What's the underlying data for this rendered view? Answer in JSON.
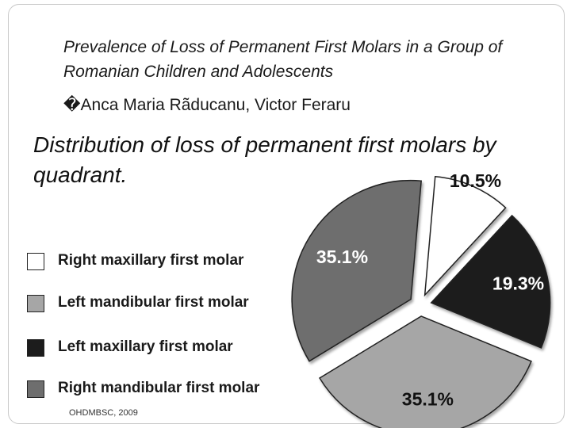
{
  "slide": {
    "title": "Prevalence of Loss of Permanent First Molars in a Group of Romanian Children and Adolescents",
    "authors": "�Anca Maria Rãducanu, Victor Feraru",
    "footer": "OHDMBSC, 2009"
  },
  "chart_data": {
    "type": "pie",
    "title": "Distribution of loss of permanent first molars by quadrant.",
    "legend_position": "left",
    "categories": [
      "Right maxillary first molar",
      "Left mandibular first molar",
      "Left maxillary first molar",
      "Right mandibular first molar"
    ],
    "values": [
      10.5,
      35.1,
      19.3,
      35.1
    ],
    "slices": [
      {
        "label": "Right maxillary first molar",
        "value": 10.5,
        "text": "10.5%",
        "color": "#ffffff"
      },
      {
        "label": "Left maxillary first molar",
        "value": 19.3,
        "text": "19.3%",
        "color": "#1c1c1c"
      },
      {
        "label": "Left mandibular first molar",
        "value": 35.1,
        "text": "35.1%",
        "color": "#a6a6a6"
      },
      {
        "label": "Right mandibular first molar",
        "value": 35.1,
        "text": "35.1%",
        "color": "#6e6e6e"
      }
    ],
    "legend": [
      {
        "label": "Right maxillary first molar",
        "color": "#ffffff"
      },
      {
        "label": "Left mandibular first molar",
        "color": "#a6a6a6"
      },
      {
        "label": "Left maxillary first molar",
        "color": "#1c1c1c"
      },
      {
        "label": "Right mandibular first molar",
        "color": "#6e6e6e"
      }
    ]
  }
}
